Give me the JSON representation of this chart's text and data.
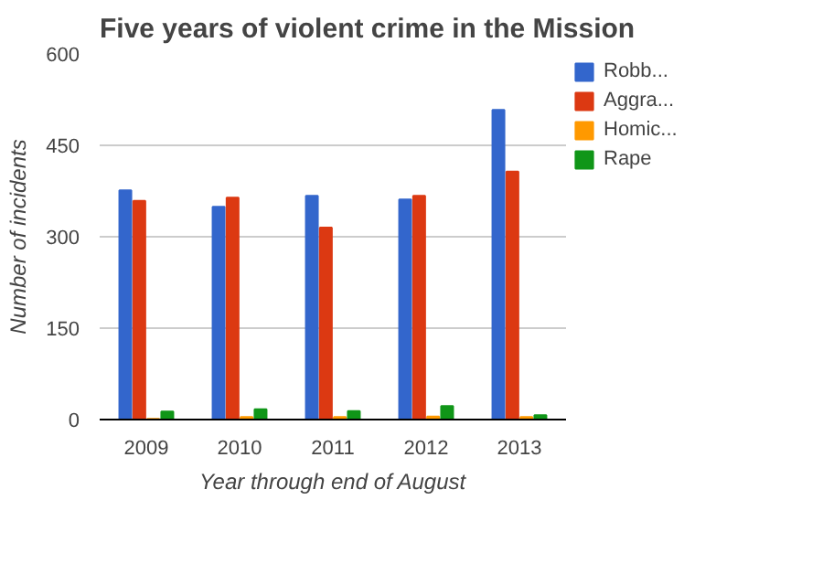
{
  "chart_data": {
    "type": "bar",
    "title": "Five years of violent crime in the Mission",
    "xlabel": "Year through end of August",
    "ylabel": "Number of incidents",
    "categories": [
      "2009",
      "2010",
      "2011",
      "2012",
      "2013"
    ],
    "series": [
      {
        "name": "Robb...",
        "color": "#3366cc",
        "values": [
          376,
          349,
          367,
          361,
          508
        ]
      },
      {
        "name": "Aggra...",
        "color": "#dc3912",
        "values": [
          359,
          364,
          315,
          367,
          407
        ]
      },
      {
        "name": "Homic...",
        "color": "#ff9900",
        "values": [
          1,
          4,
          4,
          5,
          4
        ]
      },
      {
        "name": "Rape",
        "color": "#109618",
        "values": [
          13,
          17,
          14,
          22,
          7
        ]
      }
    ],
    "ylim": [
      0,
      600
    ],
    "yticks": [
      0,
      150,
      300,
      450,
      600
    ],
    "grid": "y",
    "legend": "right"
  }
}
